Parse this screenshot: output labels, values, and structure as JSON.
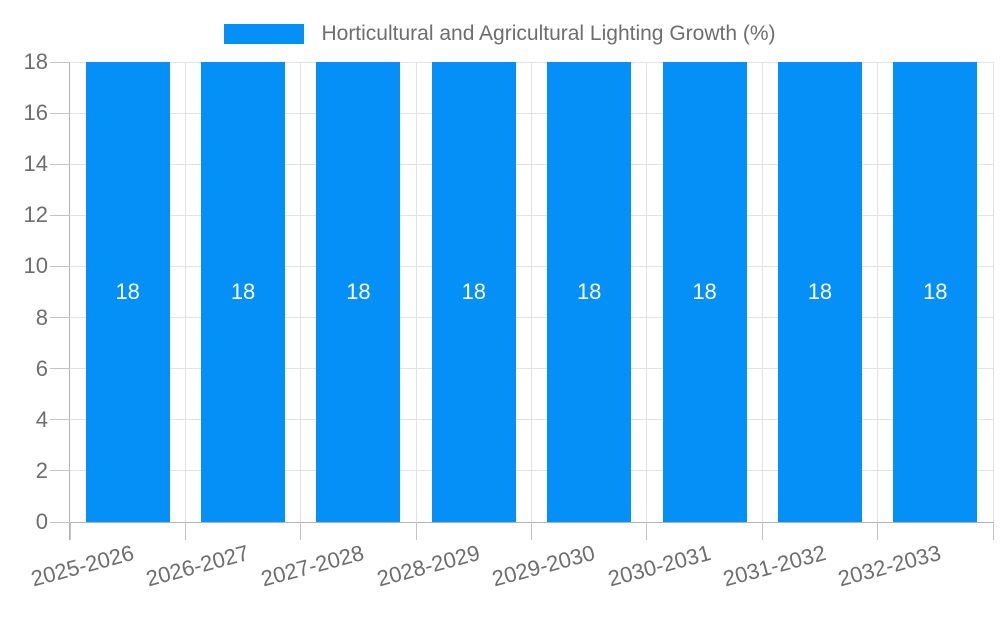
{
  "chart_data": {
    "type": "bar",
    "title": "Horticultural and Agricultural Lighting Growth (%)",
    "legend": {
      "position": "top-center",
      "entries": [
        {
          "label": "Horticultural and Agricultural Lighting Growth (%)",
          "color": "#0590F8"
        }
      ]
    },
    "categories": [
      "2025-2026",
      "2026-2027",
      "2027-2028",
      "2028-2029",
      "2029-2030",
      "2030-2031",
      "2031-2032",
      "2032-2033"
    ],
    "series": [
      {
        "name": "Horticultural and Agricultural Lighting Growth (%)",
        "color": "#0590F8",
        "values": [
          18,
          18,
          18,
          18,
          18,
          18,
          18,
          18
        ]
      }
    ],
    "bar_labels": [
      "18",
      "18",
      "18",
      "18",
      "18",
      "18",
      "18",
      "18"
    ],
    "bar_label_position": "center",
    "ylim": [
      0,
      18
    ],
    "yticks": [
      0,
      2,
      4,
      6,
      8,
      10,
      12,
      14,
      16,
      18
    ],
    "grid": true,
    "x_tick_label_rotation_deg": -15,
    "colors": {
      "bar": "#0590F8",
      "bar_label": "#FFFFFF",
      "axis_text": "#6E6E6E",
      "gridline": "#E3E3E3",
      "axis_line": "#B3B3B3",
      "tick_mark": "#C4C4C4",
      "background": "#FFFFFF"
    }
  }
}
